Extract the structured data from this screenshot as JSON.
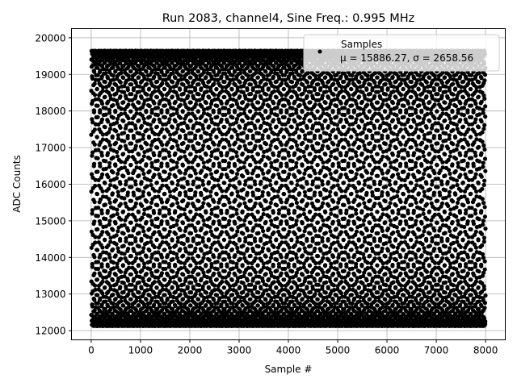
{
  "chart_data": {
    "type": "scatter",
    "title": "Run 2083, channel4, Sine Freq.: 0.995 MHz",
    "xlabel": "Sample #",
    "ylabel": "ADC Counts",
    "xlim": [
      -400,
      8400
    ],
    "ylim": [
      11750,
      20250
    ],
    "xticks": [
      "0",
      "1000",
      "2000",
      "3000",
      "4000",
      "5000",
      "6000",
      "7000",
      "8000"
    ],
    "yticks": [
      "12000",
      "13000",
      "14000",
      "15000",
      "16000",
      "17000",
      "18000",
      "19000",
      "20000"
    ],
    "grid": true,
    "legend": {
      "placement": "top-right",
      "label": "Samples",
      "stats": "μ = 15886.27, σ = 2658.56"
    },
    "series": [
      {
        "name": "Samples",
        "x_range": [
          0,
          7999
        ],
        "mean": 15886.27,
        "sigma": 2658.56,
        "sine_freq_mhz": 0.995,
        "color": "#000000"
      }
    ]
  }
}
